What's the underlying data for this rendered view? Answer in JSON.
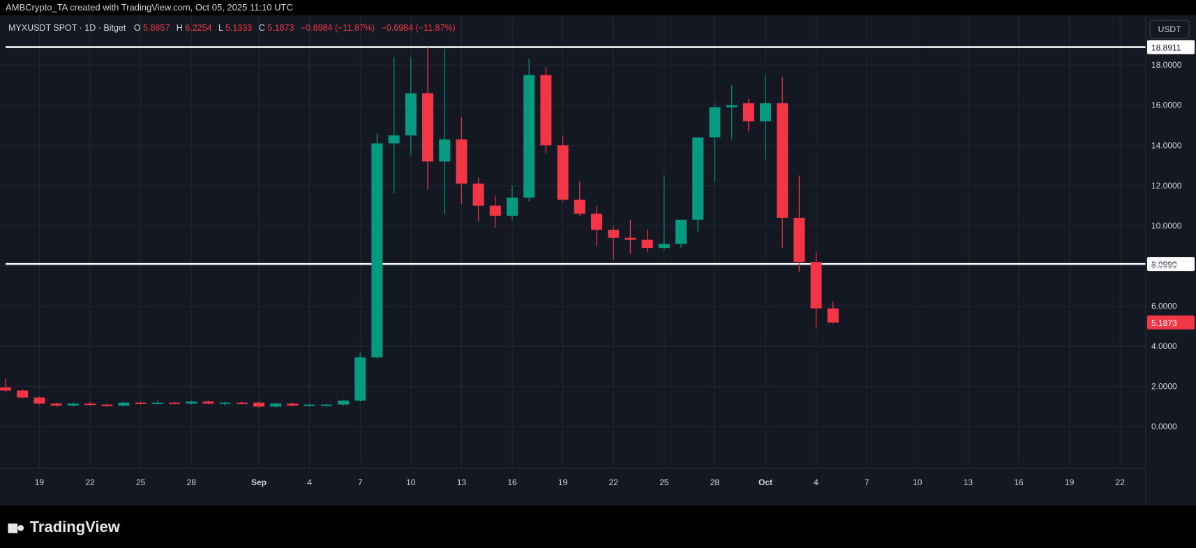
{
  "header": {
    "credit": "AMBCrypto_TA created with TradingView.com, Oct 05, 2025 11:10 UTC"
  },
  "legend": {
    "symbol": "MYXUSDT SPOT · 1D · Bitget",
    "o_label": "O",
    "o_value": "5.8857",
    "h_label": "H",
    "h_value": "6.2254",
    "l_label": "L",
    "l_value": "5.1333",
    "c_label": "C",
    "c_value": "5.1873",
    "change": "−0.6984 (−11.87%)",
    "change2": "−0.6984 (−11.87%)"
  },
  "currency_button": "USDT",
  "footer": {
    "brand": "TradingView"
  },
  "colors": {
    "up": "#089981",
    "down": "#f23645",
    "background": "#141823",
    "grid": "#232734",
    "axis_text": "#d1d4dc",
    "level_line": "#ffffff"
  },
  "chart_data": {
    "type": "candlestick",
    "interval": "1D",
    "yticks": [
      "0.0000",
      "2.0000",
      "4.0000",
      "6.0000",
      "8.0000",
      "10.0000",
      "12.0000",
      "14.0000",
      "16.0000",
      "18.0000"
    ],
    "ylim": [
      -1.0,
      19.5
    ],
    "xticks": [
      {
        "label": "16",
        "day": -1
      },
      {
        "label": "19",
        "day": 2
      },
      {
        "label": "22",
        "day": 5
      },
      {
        "label": "25",
        "day": 8
      },
      {
        "label": "28",
        "day": 11
      },
      {
        "label": "Sep",
        "day": 15
      },
      {
        "label": "4",
        "day": 18
      },
      {
        "label": "7",
        "day": 21
      },
      {
        "label": "10",
        "day": 24
      },
      {
        "label": "13",
        "day": 27
      },
      {
        "label": "16",
        "day": 30
      },
      {
        "label": "19",
        "day": 33
      },
      {
        "label": "22",
        "day": 36
      },
      {
        "label": "25",
        "day": 39
      },
      {
        "label": "28",
        "day": 42
      },
      {
        "label": "Oct",
        "day": 45
      },
      {
        "label": "4",
        "day": 48
      },
      {
        "label": "7",
        "day": 51
      },
      {
        "label": "10",
        "day": 54
      },
      {
        "label": "13",
        "day": 57
      },
      {
        "label": "16",
        "day": 60
      },
      {
        "label": "19",
        "day": 63
      },
      {
        "label": "22",
        "day": 66
      }
    ],
    "levels": [
      {
        "value": 18.8911,
        "label": "18.8911"
      },
      {
        "value": 8.099,
        "label": "8.0990"
      }
    ],
    "last_price": {
      "value": 5.1873,
      "label": "5.1873"
    },
    "candles": [
      {
        "day": 0,
        "o": 1.95,
        "h": 2.4,
        "l": 1.7,
        "c": 1.8
      },
      {
        "day": 1,
        "o": 1.8,
        "h": 1.85,
        "l": 1.4,
        "c": 1.45
      },
      {
        "day": 2,
        "o": 1.45,
        "h": 1.5,
        "l": 1.1,
        "c": 1.15
      },
      {
        "day": 3,
        "o": 1.15,
        "h": 1.2,
        "l": 1.0,
        "c": 1.05
      },
      {
        "day": 4,
        "o": 1.05,
        "h": 1.2,
        "l": 1.0,
        "c": 1.15
      },
      {
        "day": 5,
        "o": 1.15,
        "h": 1.25,
        "l": 1.05,
        "c": 1.1
      },
      {
        "day": 6,
        "o": 1.1,
        "h": 1.15,
        "l": 1.0,
        "c": 1.05
      },
      {
        "day": 7,
        "o": 1.05,
        "h": 1.25,
        "l": 1.0,
        "c": 1.2
      },
      {
        "day": 8,
        "o": 1.2,
        "h": 1.25,
        "l": 1.1,
        "c": 1.15
      },
      {
        "day": 9,
        "o": 1.15,
        "h": 1.3,
        "l": 1.1,
        "c": 1.2
      },
      {
        "day": 10,
        "o": 1.2,
        "h": 1.25,
        "l": 1.1,
        "c": 1.15
      },
      {
        "day": 11,
        "o": 1.15,
        "h": 1.3,
        "l": 1.1,
        "c": 1.25
      },
      {
        "day": 12,
        "o": 1.25,
        "h": 1.3,
        "l": 1.1,
        "c": 1.15
      },
      {
        "day": 13,
        "o": 1.15,
        "h": 1.25,
        "l": 1.05,
        "c": 1.2
      },
      {
        "day": 14,
        "o": 1.2,
        "h": 1.25,
        "l": 1.1,
        "c": 1.15
      },
      {
        "day": 15,
        "o": 1.2,
        "h": 1.25,
        "l": 0.95,
        "c": 1.0
      },
      {
        "day": 16,
        "o": 1.0,
        "h": 1.2,
        "l": 0.95,
        "c": 1.15
      },
      {
        "day": 17,
        "o": 1.15,
        "h": 1.2,
        "l": 1.0,
        "c": 1.05
      },
      {
        "day": 18,
        "o": 1.05,
        "h": 1.15,
        "l": 1.0,
        "c": 1.1
      },
      {
        "day": 19,
        "o": 1.05,
        "h": 1.15,
        "l": 1.0,
        "c": 1.1
      },
      {
        "day": 20,
        "o": 1.1,
        "h": 1.35,
        "l": 1.05,
        "c": 1.3
      },
      {
        "day": 21,
        "o": 1.3,
        "h": 3.7,
        "l": 1.25,
        "c": 3.45
      },
      {
        "day": 22,
        "o": 3.45,
        "h": 14.6,
        "l": 3.4,
        "c": 14.1
      },
      {
        "day": 23,
        "o": 14.1,
        "h": 18.4,
        "l": 11.6,
        "c": 14.5
      },
      {
        "day": 24,
        "o": 14.5,
        "h": 18.4,
        "l": 13.5,
        "c": 16.6
      },
      {
        "day": 25,
        "o": 16.6,
        "h": 18.9,
        "l": 11.8,
        "c": 13.2
      },
      {
        "day": 26,
        "o": 13.2,
        "h": 18.8,
        "l": 10.6,
        "c": 14.3
      },
      {
        "day": 27,
        "o": 14.3,
        "h": 15.4,
        "l": 11.1,
        "c": 12.1
      },
      {
        "day": 28,
        "o": 12.1,
        "h": 12.4,
        "l": 10.2,
        "c": 11.0
      },
      {
        "day": 29,
        "o": 11.0,
        "h": 11.5,
        "l": 9.9,
        "c": 10.5
      },
      {
        "day": 30,
        "o": 10.5,
        "h": 12.0,
        "l": 10.3,
        "c": 11.4
      },
      {
        "day": 31,
        "o": 11.4,
        "h": 18.3,
        "l": 11.2,
        "c": 17.5
      },
      {
        "day": 32,
        "o": 17.5,
        "h": 17.9,
        "l": 13.6,
        "c": 14.0
      },
      {
        "day": 33,
        "o": 14.0,
        "h": 14.5,
        "l": 11.2,
        "c": 11.3
      },
      {
        "day": 34,
        "o": 11.3,
        "h": 12.2,
        "l": 10.5,
        "c": 10.6
      },
      {
        "day": 35,
        "o": 10.6,
        "h": 11.0,
        "l": 9.0,
        "c": 9.8
      },
      {
        "day": 36,
        "o": 9.8,
        "h": 10.0,
        "l": 8.3,
        "c": 9.4
      },
      {
        "day": 37,
        "o": 9.4,
        "h": 10.3,
        "l": 8.6,
        "c": 9.3
      },
      {
        "day": 38,
        "o": 9.3,
        "h": 9.8,
        "l": 8.7,
        "c": 8.9
      },
      {
        "day": 39,
        "o": 8.9,
        "h": 12.5,
        "l": 8.8,
        "c": 9.1
      },
      {
        "day": 40,
        "o": 9.1,
        "h": 10.3,
        "l": 8.9,
        "c": 10.3
      },
      {
        "day": 41,
        "o": 10.3,
        "h": 14.4,
        "l": 9.7,
        "c": 14.4
      },
      {
        "day": 42,
        "o": 14.4,
        "h": 16.1,
        "l": 12.2,
        "c": 15.9
      },
      {
        "day": 43,
        "o": 15.9,
        "h": 17.0,
        "l": 14.3,
        "c": 16.0
      },
      {
        "day": 44,
        "o": 16.1,
        "h": 16.3,
        "l": 14.7,
        "c": 15.2
      },
      {
        "day": 45,
        "o": 15.2,
        "h": 17.5,
        "l": 13.3,
        "c": 16.1
      },
      {
        "day": 46,
        "o": 16.1,
        "h": 17.4,
        "l": 8.9,
        "c": 10.4
      },
      {
        "day": 47,
        "o": 10.4,
        "h": 12.5,
        "l": 7.7,
        "c": 8.2
      },
      {
        "day": 48,
        "o": 8.2,
        "h": 8.7,
        "l": 4.9,
        "c": 5.8857
      },
      {
        "day": 49,
        "o": 5.8857,
        "h": 6.2254,
        "l": 5.1333,
        "c": 5.1873
      }
    ]
  }
}
